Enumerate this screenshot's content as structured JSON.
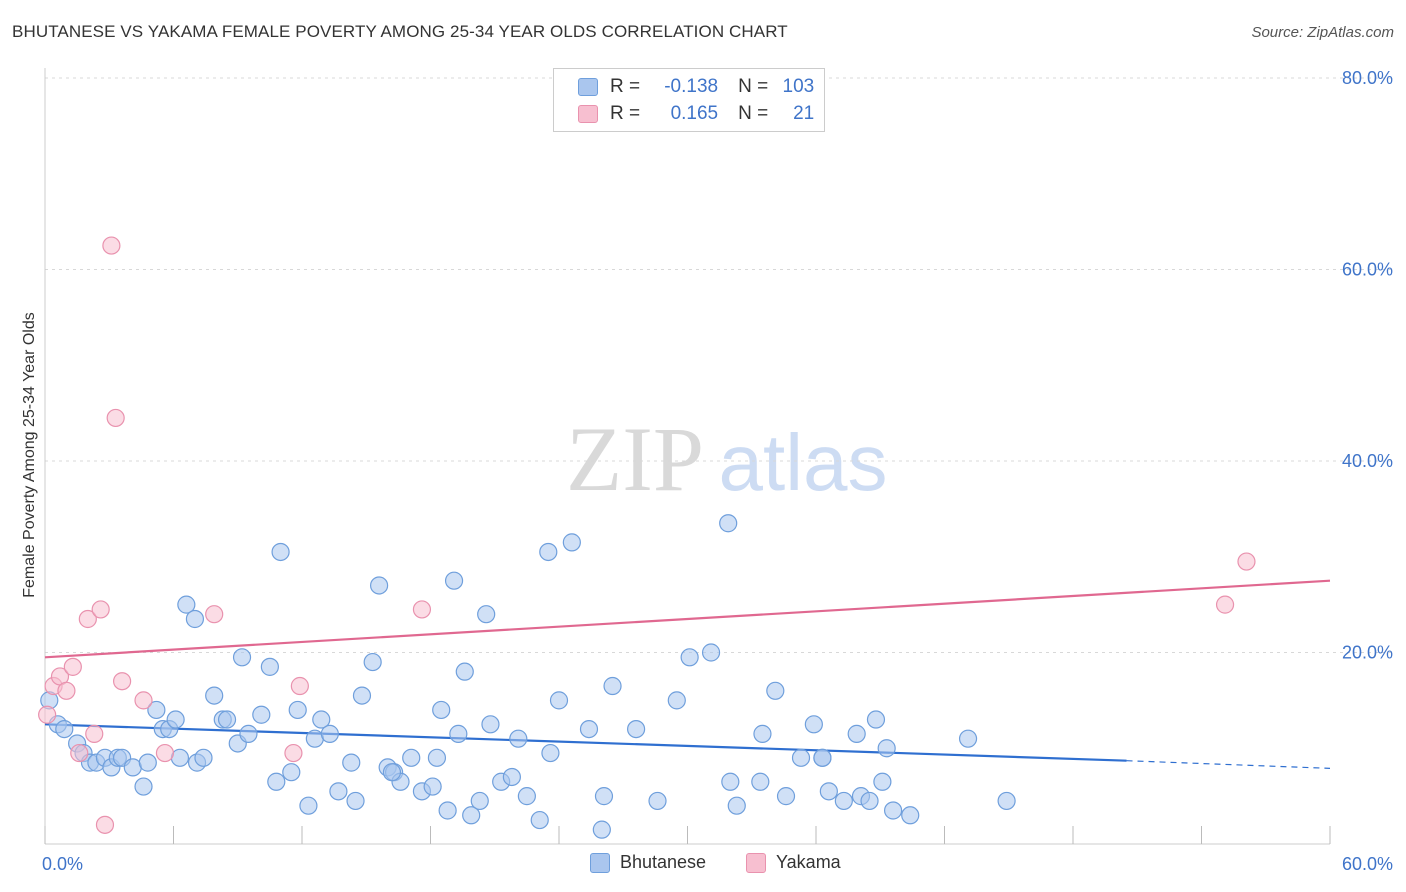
{
  "title": "BHUTANESE VS YAKAMA FEMALE POVERTY AMONG 25-34 YEAR OLDS CORRELATION CHART",
  "source": "Source: ZipAtlas.com",
  "watermark": {
    "zip": "ZIP",
    "atlas": "atlas"
  },
  "legend": {
    "rows": [
      {
        "r_label": "R =",
        "r_value": "-0.138",
        "n_label": "N =",
        "n_value": "103"
      },
      {
        "r_label": "R =",
        "r_value": "0.165",
        "n_label": "N =",
        "n_value": "21"
      }
    ]
  },
  "bottom_legend": [
    "Bhutanese",
    "Yakama"
  ],
  "colors": {
    "blue_fill": "#aac6ee",
    "blue_stroke": "#6f9fdc",
    "blue_line": "#2f6fd0",
    "pink_fill": "#f7bfd0",
    "pink_stroke": "#e992ae",
    "pink_line": "#e06890",
    "tick_label": "#3f74c9",
    "grid": "#d8d8d8"
  },
  "chart_data": {
    "type": "scatter",
    "title": "BHUTANESE VS YAKAMA FEMALE POVERTY AMONG 25-34 YEAR OLDS CORRELATION CHART",
    "xlabel": "",
    "ylabel": "Female Poverty Among 25-34 Year Olds",
    "xlim": [
      0,
      60
    ],
    "ylim": [
      0,
      80
    ],
    "x_tick_labels": [
      {
        "value": 0,
        "label": "0.0%"
      },
      {
        "value": 60,
        "label": "60.0%"
      }
    ],
    "y_tick_labels": [
      {
        "value": 20,
        "label": "20.0%"
      },
      {
        "value": 40,
        "label": "40.0%"
      },
      {
        "value": 60,
        "label": "60.0%"
      },
      {
        "value": 80,
        "label": "80.0%"
      }
    ],
    "grid": true,
    "legend_position": "top-center",
    "series": [
      {
        "name": "Bhutanese",
        "r": -0.138,
        "n": 103,
        "trend": {
          "x0": 0,
          "y0": 12.5,
          "x1": 50.5,
          "y1": 8.7,
          "dashed_to_x": 60,
          "dashed_to_y": 7.9
        },
        "points": [
          [
            0.2,
            15.0
          ],
          [
            0.6,
            12.5
          ],
          [
            0.9,
            12.0
          ],
          [
            1.5,
            10.5
          ],
          [
            1.8,
            9.5
          ],
          [
            2.1,
            8.5
          ],
          [
            2.4,
            8.5
          ],
          [
            2.8,
            9.0
          ],
          [
            3.1,
            8.0
          ],
          [
            3.4,
            9.0
          ],
          [
            3.6,
            9.0
          ],
          [
            4.1,
            8.0
          ],
          [
            4.6,
            6.0
          ],
          [
            4.8,
            8.5
          ],
          [
            5.2,
            14.0
          ],
          [
            5.5,
            12.0
          ],
          [
            5.8,
            12.0
          ],
          [
            6.1,
            13.0
          ],
          [
            6.6,
            25.0
          ],
          [
            6.3,
            9.0
          ],
          [
            7.0,
            23.5
          ],
          [
            7.1,
            8.5
          ],
          [
            7.4,
            9.0
          ],
          [
            7.9,
            15.5
          ],
          [
            8.3,
            13.0
          ],
          [
            8.5,
            13.0
          ],
          [
            9.0,
            10.5
          ],
          [
            9.2,
            19.5
          ],
          [
            9.5,
            11.5
          ],
          [
            10.1,
            13.5
          ],
          [
            10.5,
            18.5
          ],
          [
            10.8,
            6.5
          ],
          [
            11.0,
            30.5
          ],
          [
            11.5,
            7.5
          ],
          [
            11.8,
            14.0
          ],
          [
            12.3,
            4.0
          ],
          [
            12.6,
            11.0
          ],
          [
            12.9,
            13.0
          ],
          [
            13.3,
            11.5
          ],
          [
            13.7,
            5.5
          ],
          [
            14.3,
            8.5
          ],
          [
            14.5,
            4.5
          ],
          [
            14.8,
            15.5
          ],
          [
            15.3,
            19.0
          ],
          [
            15.6,
            27.0
          ],
          [
            16.0,
            8.0
          ],
          [
            16.3,
            7.5
          ],
          [
            16.6,
            6.5
          ],
          [
            17.1,
            9.0
          ],
          [
            17.6,
            5.5
          ],
          [
            18.1,
            6.0
          ],
          [
            18.3,
            9.0
          ],
          [
            18.5,
            14.0
          ],
          [
            18.8,
            3.5
          ],
          [
            19.3,
            11.5
          ],
          [
            19.1,
            27.5
          ],
          [
            19.6,
            18.0
          ],
          [
            19.9,
            3.0
          ],
          [
            20.3,
            4.5
          ],
          [
            20.6,
            24.0
          ],
          [
            20.8,
            12.5
          ],
          [
            21.3,
            6.5
          ],
          [
            21.8,
            7.0
          ],
          [
            22.1,
            11.0
          ],
          [
            22.5,
            5.0
          ],
          [
            23.1,
            2.5
          ],
          [
            23.6,
            9.5
          ],
          [
            23.5,
            30.5
          ],
          [
            24.0,
            15.0
          ],
          [
            24.6,
            31.5
          ],
          [
            25.4,
            12.0
          ],
          [
            26.0,
            1.5
          ],
          [
            26.1,
            5.0
          ],
          [
            26.5,
            16.5
          ],
          [
            27.6,
            12.0
          ],
          [
            28.6,
            4.5
          ],
          [
            29.5,
            15.0
          ],
          [
            30.1,
            19.5
          ],
          [
            31.1,
            20.0
          ],
          [
            31.9,
            33.5
          ],
          [
            32.0,
            6.5
          ],
          [
            32.3,
            4.0
          ],
          [
            33.4,
            6.5
          ],
          [
            33.5,
            11.5
          ],
          [
            34.1,
            16.0
          ],
          [
            34.6,
            5.0
          ],
          [
            35.3,
            9.0
          ],
          [
            35.9,
            12.5
          ],
          [
            36.3,
            9.0
          ],
          [
            36.6,
            5.5
          ],
          [
            37.3,
            4.5
          ],
          [
            37.9,
            11.5
          ],
          [
            38.1,
            5.0
          ],
          [
            38.5,
            4.5
          ],
          [
            38.8,
            13.0
          ],
          [
            39.1,
            6.5
          ],
          [
            39.3,
            10.0
          ],
          [
            39.6,
            3.5
          ],
          [
            40.4,
            3.0
          ],
          [
            43.1,
            11.0
          ],
          [
            44.9,
            4.5
          ],
          [
            36.3,
            9.0
          ],
          [
            16.2,
            7.5
          ]
        ]
      },
      {
        "name": "Yakama",
        "r": 0.165,
        "n": 21,
        "trend": {
          "x0": 0,
          "y0": 19.5,
          "x1": 60,
          "y1": 27.5
        },
        "points": [
          [
            0.1,
            13.5
          ],
          [
            0.4,
            16.5
          ],
          [
            0.7,
            17.5
          ],
          [
            1.0,
            16.0
          ],
          [
            1.3,
            18.5
          ],
          [
            1.6,
            9.5
          ],
          [
            2.0,
            23.5
          ],
          [
            2.3,
            11.5
          ],
          [
            2.6,
            24.5
          ],
          [
            2.8,
            2.0
          ],
          [
            3.1,
            62.5
          ],
          [
            3.3,
            44.5
          ],
          [
            3.6,
            17.0
          ],
          [
            4.6,
            15.0
          ],
          [
            5.6,
            9.5
          ],
          [
            7.9,
            24.0
          ],
          [
            11.6,
            9.5
          ],
          [
            11.9,
            16.5
          ],
          [
            17.6,
            24.5
          ],
          [
            55.1,
            25.0
          ],
          [
            56.1,
            29.5
          ]
        ]
      }
    ]
  }
}
